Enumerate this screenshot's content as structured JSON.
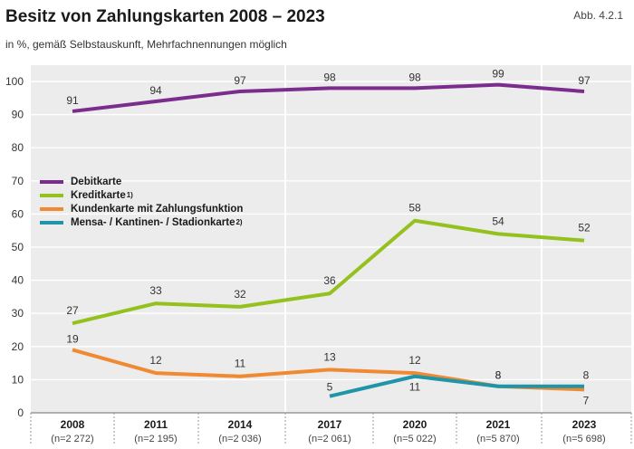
{
  "header": {
    "title": "Besitz von Zahlungskarten 2008 – 2023",
    "subtitle": "in %, gemäß Selbstauskunft, Mehrfachnennungen möglich",
    "figure_label": "Abb. 4.2.1"
  },
  "chart_data": {
    "type": "line",
    "x": [
      "2008",
      "2011",
      "2014",
      "2017",
      "2020",
      "2021",
      "2023"
    ],
    "x_sub": [
      "(n=2 272)",
      "(n=2 195)",
      "(n=2 036)",
      "(n=2 061)",
      "(n=5 022)",
      "(n=5 870)",
      "(n=5 698)"
    ],
    "ylim": [
      0,
      100
    ],
    "yticks": [
      0,
      10,
      20,
      30,
      40,
      50,
      60,
      70,
      80,
      90,
      100
    ],
    "grid": true,
    "legend_position": "middle-left",
    "series": [
      {
        "name": "Debitkarte",
        "sup": "",
        "color": "#7b2d8e",
        "values": [
          91,
          94,
          97,
          98,
          98,
          99,
          97
        ],
        "labels": [
          "91",
          "94",
          "97",
          "98",
          "98",
          "99",
          "97"
        ]
      },
      {
        "name": "Kreditkarte",
        "sup": "1)",
        "color": "#95c11f",
        "values": [
          27,
          33,
          32,
          36,
          58,
          54,
          52
        ],
        "labels": [
          "27",
          "33",
          "32",
          "36",
          "58",
          "54",
          "52"
        ]
      },
      {
        "name": "Kundenkarte mit Zahlungsfunktion",
        "sup": "",
        "color": "#f08a32",
        "values": [
          19,
          12,
          11,
          13,
          12,
          8,
          7
        ],
        "labels": [
          "19",
          "12",
          "11",
          "13",
          "12",
          "8",
          "7"
        ]
      },
      {
        "name": "Mensa- / Kantinen- / Stadionkarte",
        "sup": "2)",
        "color": "#1e95a9",
        "values": [
          null,
          null,
          null,
          5,
          11,
          8,
          8
        ],
        "labels": [
          "",
          "",
          "",
          "5",
          "11",
          "8",
          "8"
        ]
      }
    ]
  }
}
